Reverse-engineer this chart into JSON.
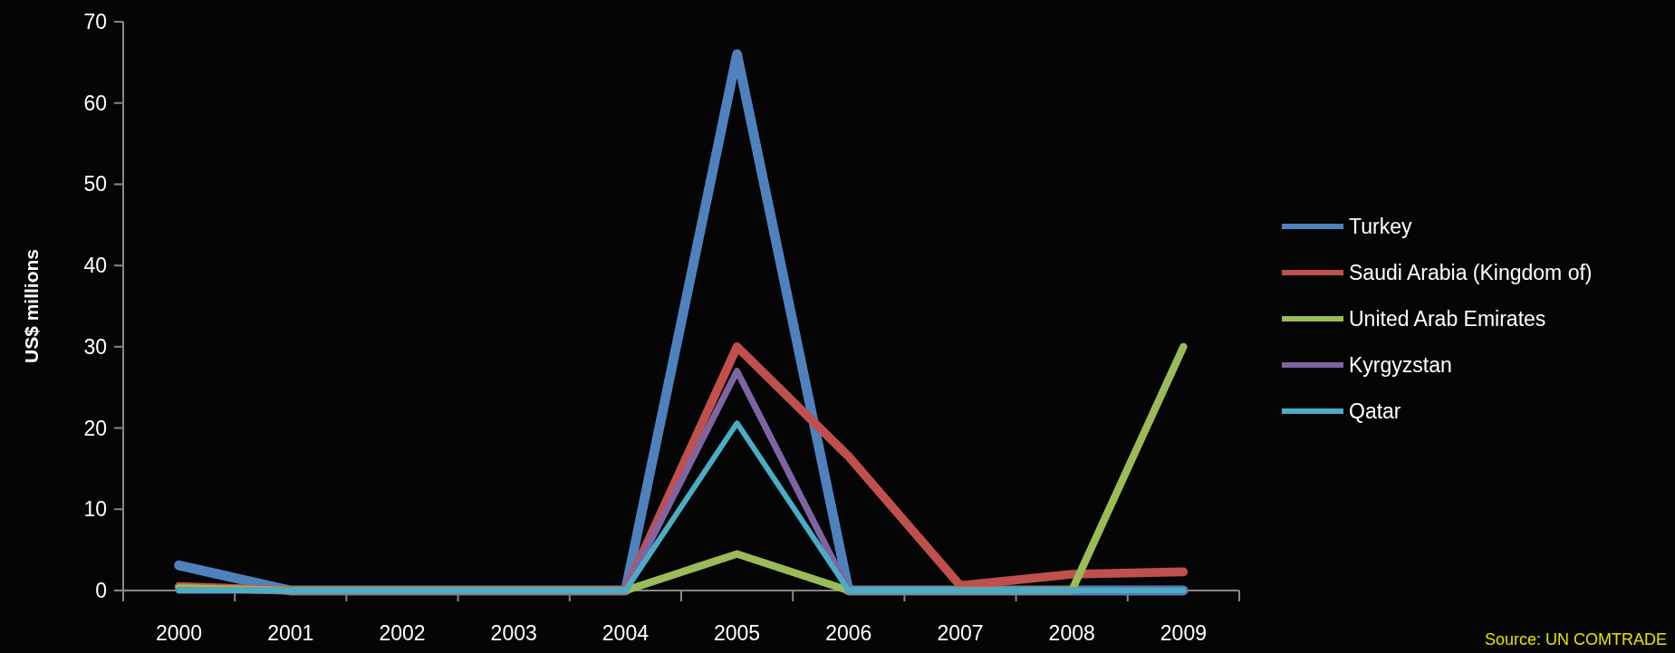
{
  "chart_data": {
    "type": "line",
    "ylabel": "US$ millions",
    "categories": [
      "2000",
      "2001",
      "2002",
      "2003",
      "2004",
      "2005",
      "2006",
      "2007",
      "2008",
      "2009"
    ],
    "series": [
      {
        "name": "Turkey",
        "color": "#4f81bd",
        "values": [
          3.1,
          0,
          0,
          0,
          0,
          66,
          0,
          0,
          0,
          0
        ]
      },
      {
        "name": "Saudi Arabia (Kingdom of)",
        "color": "#c0504d",
        "values": [
          0.5,
          0,
          0,
          0,
          0,
          30,
          16.5,
          0.6,
          2,
          2.3
        ]
      },
      {
        "name": "United Arab Emirates",
        "color": "#9bbb59",
        "values": [
          0.3,
          0,
          0,
          0,
          0,
          4.5,
          0,
          0,
          0,
          30
        ]
      },
      {
        "name": "Kyrgyzstan",
        "color": "#8064a2",
        "values": [
          0,
          0,
          0,
          0,
          0,
          27,
          0,
          0,
          0,
          0
        ]
      },
      {
        "name": "Qatar",
        "color": "#4bacc6",
        "values": [
          0,
          0,
          0,
          0,
          0,
          20.6,
          0,
          0,
          0,
          0
        ]
      }
    ],
    "ylim": [
      0,
      70
    ],
    "yticks": [
      0,
      10,
      20,
      30,
      40,
      50,
      60,
      70
    ],
    "grid": false,
    "legend": "right",
    "annotations": [
      "Source: UN COMTRADE"
    ]
  }
}
